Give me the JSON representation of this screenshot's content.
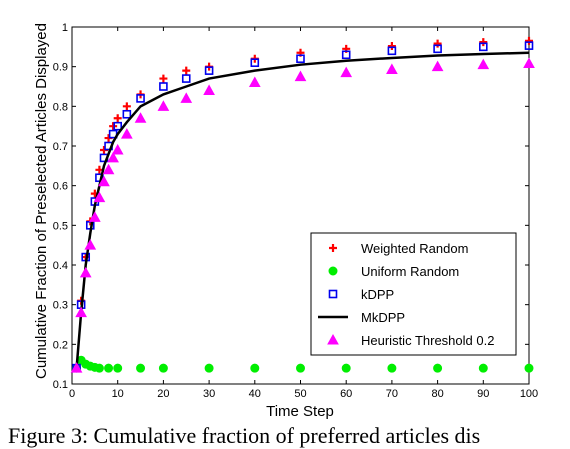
{
  "chart_data": {
    "type": "scatter",
    "xlabel": "Time Step",
    "ylabel": "Cumulative Fraction of Preselected Articles Displayed",
    "xlim": [
      0,
      100
    ],
    "ylim": [
      0.1,
      1
    ],
    "xticks": [
      0,
      10,
      20,
      30,
      40,
      50,
      60,
      70,
      80,
      90,
      100
    ],
    "yticks": [
      0.1,
      0.2,
      0.3,
      0.4,
      0.5,
      0.6,
      0.7,
      0.8,
      0.9,
      1
    ],
    "ytick_labels": [
      "0.1",
      "0.2",
      "0.3",
      "0.4",
      "0.5",
      "0.6",
      "0.7",
      "0.8",
      "0.9",
      "1"
    ],
    "grid": false,
    "legend_position": "lower-right",
    "series": [
      {
        "name": "Weighted Random",
        "marker": "plus",
        "color": "#ff0000",
        "x": [
          1,
          2,
          3,
          4,
          5,
          6,
          7,
          8,
          9,
          10,
          12,
          15,
          20,
          25,
          30,
          40,
          50,
          60,
          70,
          80,
          90,
          100
        ],
        "y": [
          0.14,
          0.31,
          0.42,
          0.51,
          0.58,
          0.64,
          0.69,
          0.72,
          0.75,
          0.77,
          0.8,
          0.83,
          0.87,
          0.89,
          0.9,
          0.92,
          0.935,
          0.945,
          0.952,
          0.958,
          0.962,
          0.965
        ]
      },
      {
        "name": "Uniform Random",
        "marker": "circle",
        "color": "#00ee00",
        "x": [
          1,
          2,
          3,
          4,
          5,
          6,
          8,
          10,
          15,
          20,
          30,
          40,
          50,
          60,
          70,
          80,
          90,
          100
        ],
        "y": [
          0.14,
          0.16,
          0.15,
          0.145,
          0.142,
          0.14,
          0.14,
          0.14,
          0.14,
          0.14,
          0.14,
          0.14,
          0.14,
          0.14,
          0.14,
          0.14,
          0.14,
          0.14
        ]
      },
      {
        "name": "kDPP",
        "marker": "square",
        "color": "#0000ee",
        "x": [
          1,
          2,
          3,
          4,
          5,
          6,
          7,
          8,
          9,
          10,
          12,
          15,
          20,
          25,
          30,
          40,
          50,
          60,
          70,
          80,
          90,
          100
        ],
        "y": [
          0.14,
          0.3,
          0.42,
          0.5,
          0.56,
          0.62,
          0.67,
          0.7,
          0.73,
          0.75,
          0.78,
          0.82,
          0.85,
          0.87,
          0.89,
          0.91,
          0.92,
          0.93,
          0.94,
          0.945,
          0.95,
          0.953
        ]
      },
      {
        "name": "MkDPP",
        "marker": "line",
        "color": "#000000",
        "x": [
          1,
          2,
          3,
          4,
          5,
          6,
          7,
          8,
          9,
          10,
          12,
          15,
          20,
          25,
          30,
          40,
          50,
          60,
          70,
          80,
          90,
          100
        ],
        "y": [
          0.14,
          0.28,
          0.4,
          0.48,
          0.55,
          0.6,
          0.65,
          0.68,
          0.71,
          0.73,
          0.76,
          0.8,
          0.83,
          0.85,
          0.87,
          0.89,
          0.905,
          0.915,
          0.922,
          0.928,
          0.932,
          0.935
        ]
      },
      {
        "name": "Heuristic Threshold 0.2",
        "marker": "triangle",
        "color": "#ff00ff",
        "x": [
          1,
          2,
          3,
          4,
          5,
          6,
          7,
          8,
          9,
          10,
          12,
          15,
          20,
          25,
          30,
          40,
          50,
          60,
          70,
          80,
          90,
          100
        ],
        "y": [
          0.14,
          0.28,
          0.38,
          0.45,
          0.52,
          0.57,
          0.61,
          0.64,
          0.67,
          0.69,
          0.73,
          0.77,
          0.8,
          0.82,
          0.84,
          0.86,
          0.875,
          0.885,
          0.893,
          0.9,
          0.905,
          0.908
        ]
      }
    ]
  },
  "caption": "Figure 3: Cumulative fraction of preferred articles dis"
}
